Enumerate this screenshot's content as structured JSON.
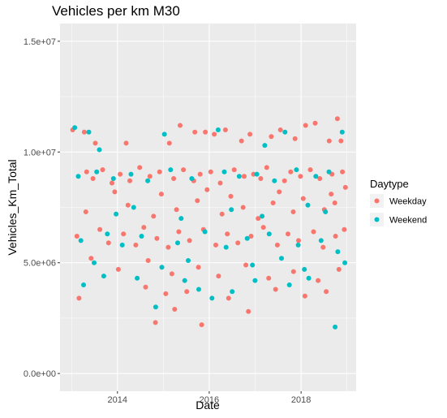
{
  "chart_data": {
    "type": "scatter",
    "title": "Vehicles per km M30",
    "xlabel": "Date",
    "ylabel": "Vehicles_Km_Total",
    "xlim": [
      "2012-10-01",
      "2019-03-15"
    ],
    "ylim": [
      -800000,
      15800000
    ],
    "x_ticks": [
      {
        "value": "2014-01-01",
        "label": "2014"
      },
      {
        "value": "2016-01-01",
        "label": "2016"
      },
      {
        "value": "2018-01-01",
        "label": "2018"
      }
    ],
    "x_minor_ticks": [
      "2013-01-01",
      "2015-01-01",
      "2017-01-01",
      "2019-01-01"
    ],
    "y_ticks": [
      {
        "value": 0,
        "label": "0.0e+00"
      },
      {
        "value": 5000000,
        "label": "5.0e+06"
      },
      {
        "value": 10000000,
        "label": "1.0e+07"
      },
      {
        "value": 15000000,
        "label": "1.5e+07"
      }
    ],
    "y_minor_ticks": [
      2500000,
      7500000,
      12500000
    ],
    "background": "#EBEBEB",
    "grid": true,
    "legend": {
      "title": "Daytype",
      "position": "right",
      "entries": [
        {
          "label": "Weekday",
          "color": "#F8766D"
        },
        {
          "label": "Weekend",
          "color": "#00BFC4"
        }
      ]
    },
    "series": [
      {
        "name": "Weekday",
        "color": "#F8766D",
        "points": [
          [
            "2013-01-10",
            11000000
          ],
          [
            "2013-04-12",
            10900000
          ],
          [
            "2013-07-09",
            10400000
          ],
          [
            "2014-03-11",
            10400000
          ],
          [
            "2015-02-18",
            10400000
          ],
          [
            "2015-05-14",
            11200000
          ],
          [
            "2015-09-09",
            10900000
          ],
          [
            "2015-12-01",
            10900000
          ],
          [
            "2016-02-10",
            10800000
          ],
          [
            "2016-05-09",
            11000000
          ],
          [
            "2016-09-14",
            10500000
          ],
          [
            "2016-11-20",
            10800000
          ],
          [
            "2017-05-09",
            10700000
          ],
          [
            "2017-07-21",
            11000000
          ],
          [
            "2017-11-14",
            10600000
          ],
          [
            "2018-02-06",
            11200000
          ],
          [
            "2018-04-23",
            11300000
          ],
          [
            "2018-08-13",
            10500000
          ],
          [
            "2018-10-17",
            11500000
          ],
          [
            "2018-11-14",
            10500000
          ],
          [
            "2013-03-01",
            3400000
          ],
          [
            "2014-08-13",
            3900000
          ],
          [
            "2014-10-30",
            2300000
          ],
          [
            "2015-01-20",
            3600000
          ],
          [
            "2015-04-01",
            2900000
          ],
          [
            "2015-07-06",
            3700000
          ],
          [
            "2015-11-02",
            2200000
          ],
          [
            "2016-06-03",
            3400000
          ],
          [
            "2016-11-08",
            2800000
          ],
          [
            "2017-06-12",
            3800000
          ],
          [
            "2018-02-01",
            3500000
          ],
          [
            "2018-07-20",
            3700000
          ],
          [
            "2013-05-01",
            9100000
          ],
          [
            "2013-06-20",
            8800000
          ],
          [
            "2013-09-05",
            9200000
          ],
          [
            "2013-11-18",
            8600000
          ],
          [
            "2014-01-22",
            9000000
          ],
          [
            "2014-04-09",
            8700000
          ],
          [
            "2014-06-27",
            9300000
          ],
          [
            "2014-09-16",
            8900000
          ],
          [
            "2014-12-02",
            9100000
          ],
          [
            "2015-03-24",
            8800000
          ],
          [
            "2015-06-10",
            9200000
          ],
          [
            "2015-08-31",
            8700000
          ],
          [
            "2015-10-21",
            9000000
          ],
          [
            "2016-01-13",
            9100000
          ],
          [
            "2016-03-29",
            8600000
          ],
          [
            "2016-07-18",
            9200000
          ],
          [
            "2016-10-05",
            8900000
          ],
          [
            "2016-12-19",
            9000000
          ],
          [
            "2017-02-14",
            8800000
          ],
          [
            "2017-04-03",
            9300000
          ],
          [
            "2017-08-22",
            8700000
          ],
          [
            "2017-10-10",
            9100000
          ],
          [
            "2017-12-27",
            8900000
          ],
          [
            "2018-03-15",
            9200000
          ],
          [
            "2018-05-30",
            8800000
          ],
          [
            "2018-09-04",
            9000000
          ],
          [
            "2018-11-26",
            9100000
          ],
          [
            "2013-02-12",
            6200000
          ],
          [
            "2013-08-14",
            6500000
          ],
          [
            "2013-10-22",
            5900000
          ],
          [
            "2014-02-18",
            6300000
          ],
          [
            "2014-05-27",
            5800000
          ],
          [
            "2014-07-30",
            6600000
          ],
          [
            "2014-11-11",
            6100000
          ],
          [
            "2015-02-09",
            5700000
          ],
          [
            "2015-05-04",
            6400000
          ],
          [
            "2015-07-28",
            6000000
          ],
          [
            "2015-11-16",
            6500000
          ],
          [
            "2016-02-22",
            5800000
          ],
          [
            "2016-05-24",
            6300000
          ],
          [
            "2016-08-16",
            5900000
          ],
          [
            "2016-11-29",
            6200000
          ],
          [
            "2017-03-07",
            6600000
          ],
          [
            "2017-06-26",
            5800000
          ],
          [
            "2017-09-19",
            6300000
          ],
          [
            "2017-12-12",
            6000000
          ],
          [
            "2018-04-10",
            6400000
          ],
          [
            "2018-06-25",
            5700000
          ],
          [
            "2018-10-02",
            6200000
          ],
          [
            "2018-12-11",
            6500000
          ],
          [
            "2013-04-24",
            7300000
          ],
          [
            "2014-03-26",
            7600000
          ],
          [
            "2014-10-15",
            7100000
          ],
          [
            "2015-04-16",
            7400000
          ],
          [
            "2015-09-29",
            7800000
          ],
          [
            "2016-04-12",
            7200000
          ],
          [
            "2016-09-27",
            7500000
          ],
          [
            "2017-01-24",
            7000000
          ],
          [
            "2017-05-23",
            7700000
          ],
          [
            "2017-10-31",
            7300000
          ],
          [
            "2018-01-18",
            7900000
          ],
          [
            "2018-07-05",
            7400000
          ],
          [
            "2018-09-26",
            7700000
          ],
          [
            "2013-06-05",
            5200000
          ],
          [
            "2014-01-08",
            4700000
          ],
          [
            "2014-09-02",
            5100000
          ],
          [
            "2015-03-10",
            4500000
          ],
          [
            "2015-10-07",
            4800000
          ],
          [
            "2016-03-15",
            4400000
          ],
          [
            "2016-10-19",
            4900000
          ],
          [
            "2017-04-18",
            4300000
          ],
          [
            "2017-11-02",
            4600000
          ],
          [
            "2018-05-16",
            4200000
          ],
          [
            "2018-10-29",
            4700000
          ],
          [
            "2013-12-10",
            8200000
          ],
          [
            "2014-12-16",
            8100000
          ],
          [
            "2015-12-15",
            8300000
          ],
          [
            "2016-06-21",
            8000000
          ],
          [
            "2017-07-11",
            8200000
          ],
          [
            "2018-08-28",
            8100000
          ],
          [
            "2018-12-20",
            8400000
          ]
        ]
      },
      {
        "name": "Weekend",
        "color": "#00BFC4",
        "points": [
          [
            "2013-01-26",
            11100000
          ],
          [
            "2013-05-18",
            10900000
          ],
          [
            "2013-08-10",
            10100000
          ],
          [
            "2015-01-10",
            10800000
          ],
          [
            "2016-03-12",
            11000000
          ],
          [
            "2017-03-18",
            10300000
          ],
          [
            "2017-08-26",
            10900000
          ],
          [
            "2018-11-24",
            10900000
          ],
          [
            "2013-04-06",
            4000000
          ],
          [
            "2013-09-14",
            4400000
          ],
          [
            "2014-06-07",
            4300000
          ],
          [
            "2014-11-01",
            3000000
          ],
          [
            "2015-06-20",
            4200000
          ],
          [
            "2015-10-10",
            3800000
          ],
          [
            "2016-01-23",
            3400000
          ],
          [
            "2016-07-02",
            3700000
          ],
          [
            "2016-12-31",
            4200000
          ],
          [
            "2017-09-30",
            4000000
          ],
          [
            "2018-03-03",
            4300000
          ],
          [
            "2018-09-29",
            2100000
          ],
          [
            "2018-12-15",
            5000000
          ],
          [
            "2013-02-23",
            8900000
          ],
          [
            "2013-07-20",
            9100000
          ],
          [
            "2013-11-30",
            8800000
          ],
          [
            "2014-04-19",
            9000000
          ],
          [
            "2014-08-30",
            8700000
          ],
          [
            "2015-02-28",
            9200000
          ],
          [
            "2015-08-15",
            8800000
          ],
          [
            "2016-04-30",
            9100000
          ],
          [
            "2016-08-27",
            8900000
          ],
          [
            "2017-01-14",
            9000000
          ],
          [
            "2017-06-03",
            8700000
          ],
          [
            "2017-11-25",
            9200000
          ],
          [
            "2018-04-28",
            8900000
          ],
          [
            "2018-08-11",
            9100000
          ],
          [
            "2013-03-16",
            6000000
          ],
          [
            "2013-10-12",
            6300000
          ],
          [
            "2014-02-08",
            5800000
          ],
          [
            "2014-07-12",
            6200000
          ],
          [
            "2015-04-25",
            5900000
          ],
          [
            "2015-11-28",
            6400000
          ],
          [
            "2016-05-14",
            5700000
          ],
          [
            "2016-10-29",
            6100000
          ],
          [
            "2017-04-22",
            6300000
          ],
          [
            "2017-12-09",
            5800000
          ],
          [
            "2018-06-09",
            6000000
          ],
          [
            "2018-10-20",
            5500000
          ],
          [
            "2013-06-29",
            5000000
          ],
          [
            "2014-12-20",
            4800000
          ],
          [
            "2015-07-18",
            5100000
          ],
          [
            "2016-12-10",
            4900000
          ],
          [
            "2017-07-29",
            5200000
          ],
          [
            "2018-01-27",
            4700000
          ],
          [
            "2013-12-21",
            7200000
          ],
          [
            "2014-05-10",
            7500000
          ],
          [
            "2015-05-23",
            7000000
          ],
          [
            "2016-06-25",
            7400000
          ],
          [
            "2017-02-25",
            7100000
          ],
          [
            "2018-02-24",
            7600000
          ],
          [
            "2018-07-14",
            7300000
          ]
        ]
      }
    ]
  }
}
